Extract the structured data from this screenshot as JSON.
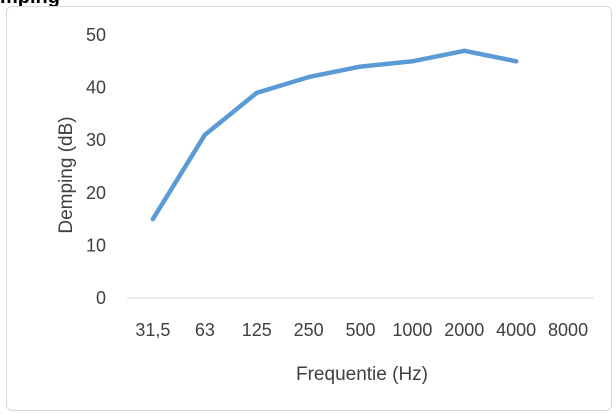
{
  "page": {
    "cut_title": "mping"
  },
  "chart_data": {
    "type": "line",
    "categories": [
      "31,5",
      "63",
      "125",
      "250",
      "500",
      "1000",
      "2000",
      "4000",
      "8000"
    ],
    "series": [
      {
        "values": [
          15,
          31,
          39,
          42,
          44,
          45,
          47,
          45,
          null
        ],
        "color": "#5b9bd5"
      }
    ],
    "title": "",
    "xlabel": "Frequentie (Hz)",
    "ylabel": "Demping (dB)",
    "ylim": [
      0,
      50
    ],
    "y_ticks": [
      "0",
      "10",
      "20",
      "30",
      "40",
      "50"
    ],
    "grid": false,
    "axis_color": "#d9d9d9",
    "text_color": "#404040"
  }
}
